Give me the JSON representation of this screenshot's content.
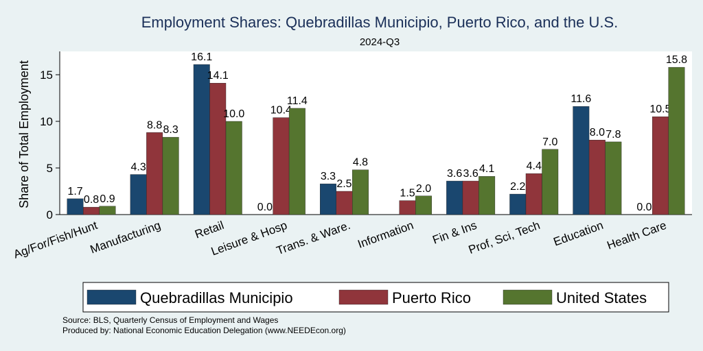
{
  "chart_data": {
    "type": "bar",
    "title": "Employment Shares: Quebradillas Municipio, Puerto Rico, and the U.S.",
    "subtitle": "2024-Q3",
    "ylabel": "Share of Total Employment",
    "xlabel": "",
    "ylim": [
      0,
      17.5
    ],
    "yticks": [
      0,
      5,
      10,
      15
    ],
    "grid": false,
    "legend_position": "bottom",
    "categories": [
      "Ag/For/Fish/Hunt",
      "Manufacturing",
      "Retail",
      "Leisure & Hosp",
      "Trans. & Ware.",
      "Information",
      "Fin & Ins",
      "Prof, Sci, Tech",
      "Education",
      "Health Care"
    ],
    "series": [
      {
        "name": "Quebradillas Municipio",
        "color": "#1a476f",
        "values": [
          1.7,
          4.3,
          16.1,
          0.0,
          3.3,
          null,
          3.6,
          2.2,
          11.6,
          0.0
        ],
        "labels": [
          "1.7",
          "4.3",
          "16.1",
          "0.0",
          "3.3",
          "",
          "3.6",
          "2.2",
          "11.6",
          "0.0"
        ]
      },
      {
        "name": "Puerto Rico",
        "color": "#90353b",
        "values": [
          0.8,
          8.8,
          14.1,
          10.4,
          2.5,
          1.5,
          3.6,
          4.4,
          8.0,
          10.5
        ],
        "labels": [
          "0.8",
          "8.8",
          "14.1",
          "10.4",
          "2.5",
          "1.5",
          "3.6",
          "4.4",
          "8.0",
          "10.5"
        ]
      },
      {
        "name": "United States",
        "color": "#55752f",
        "values": [
          0.9,
          8.3,
          10.0,
          11.4,
          4.8,
          2.0,
          4.1,
          7.0,
          7.8,
          15.8
        ],
        "labels": [
          "0.9",
          "8.3",
          "10.0",
          "11.4",
          "4.8",
          "2.0",
          "4.1",
          "7.0",
          "7.8",
          "15.8"
        ]
      }
    ]
  },
  "footer": {
    "source": "Source: BLS, Quarterly Census of Employment and Wages",
    "produced_by": "Produced by: National Economic Education Delegation (www.NEEDEcon.org)"
  },
  "colors": {
    "background": "#eaf2f3",
    "plot_background": "#ffffff",
    "title": "#1a2f58"
  }
}
